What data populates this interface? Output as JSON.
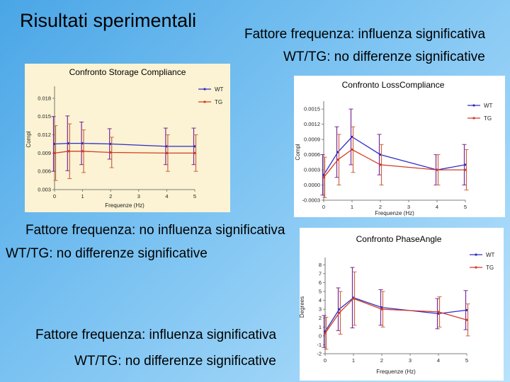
{
  "slide": {
    "title": "Risultati sperimentali",
    "text1_line1": "Fattore frequenza: influenza significativa",
    "text1_line2": "WT/TG: no differenze significative",
    "text2_line1": "Fattore frequenza: no influenza significativa",
    "text2_line2": "WT/TG: no differenze significative",
    "text3_line1": "Fattore frequenza: influenza significativa",
    "text3_line2": "WT/TG: no differenze significative"
  },
  "colors": {
    "wt": "#2d2dc8",
    "tg": "#d23c28",
    "err_wt": "#7a2a9a",
    "err_tg": "#cc6644"
  },
  "chart_data": [
    {
      "id": "chart1",
      "type": "line",
      "title": "Confronto Storage Compliance",
      "xlabel": "Frequenze (Hz)",
      "ylabel": "Compl",
      "x": [
        0,
        0.5,
        1,
        2,
        4,
        5
      ],
      "xticks": [
        0,
        1,
        2,
        3,
        4,
        5
      ],
      "yticks": [
        0.003,
        0.006,
        0.009,
        0.012,
        0.015,
        0.018
      ],
      "ytick_labels": [
        "0.003",
        "0.006",
        "0.009",
        "0.012",
        "0.015",
        "0.018"
      ],
      "xlim": [
        0,
        5
      ],
      "ylim": [
        0.003,
        0.0195
      ],
      "series": [
        {
          "name": "WT",
          "values": [
            0.0105,
            0.0106,
            0.0106,
            0.0105,
            0.0101,
            0.0101
          ],
          "err": [
            0.0045,
            0.0045,
            0.0035,
            0.0025,
            0.003,
            0.003
          ]
        },
        {
          "name": "TG",
          "values": [
            0.009,
            0.0093,
            0.0093,
            0.0091,
            0.009,
            0.009
          ],
          "err": [
            0.0045,
            0.0045,
            0.0035,
            0.0025,
            0.003,
            0.003
          ]
        }
      ]
    },
    {
      "id": "chart2",
      "type": "line",
      "title": "Confronto LossCompliance",
      "xlabel": "Frequenze (Hz)",
      "ylabel": "Compl",
      "x": [
        0,
        0.5,
        1,
        2,
        4,
        5
      ],
      "xticks": [
        0,
        1,
        2,
        3,
        4,
        5
      ],
      "yticks": [
        -0.0003,
        0.0,
        0.0003,
        0.0006,
        0.0009,
        0.0012,
        0.0015
      ],
      "ytick_labels": [
        "-0.0003",
        "0.0000",
        "0.0003",
        "0.0006",
        "0.0009",
        "0.0012",
        "0.0015"
      ],
      "xlim": [
        0,
        5
      ],
      "ylim": [
        -0.0003,
        0.0016
      ],
      "series": [
        {
          "name": "WT",
          "values": [
            0.0002,
            0.00065,
            0.00095,
            0.0006,
            0.0003,
            0.0004
          ],
          "err": [
            0.0004,
            0.0005,
            0.00055,
            0.0004,
            0.0003,
            0.0004
          ]
        },
        {
          "name": "TG",
          "values": [
            0.00015,
            0.0005,
            0.0007,
            0.0004,
            0.0003,
            0.0003
          ],
          "err": [
            0.0004,
            0.0005,
            0.00045,
            0.0004,
            0.0003,
            0.0004
          ]
        }
      ]
    },
    {
      "id": "chart3",
      "type": "line",
      "title": "Confronto PhaseAngle",
      "xlabel": "Frequenze (Hz)",
      "ylabel": "Degrees",
      "x": [
        0,
        0.5,
        1,
        2,
        4,
        5
      ],
      "xticks": [
        0,
        1,
        2,
        3,
        4,
        5
      ],
      "yticks": [
        -2,
        -1,
        0,
        1,
        2,
        3,
        4,
        5,
        6,
        7,
        8
      ],
      "ytick_labels": [
        "-2",
        "-1",
        "0",
        "1",
        "2",
        "3",
        "4",
        "5",
        "6",
        "7",
        "8"
      ],
      "xlim": [
        0,
        5
      ],
      "ylim": [
        -2,
        8.5
      ],
      "series": [
        {
          "name": "WT",
          "values": [
            0.5,
            3.0,
            4.3,
            3.2,
            2.5,
            2.9
          ],
          "err": [
            1.8,
            2.4,
            3.4,
            2.0,
            1.7,
            2.2
          ]
        },
        {
          "name": "TG",
          "values": [
            0.3,
            2.6,
            4.2,
            3.0,
            2.7,
            1.8
          ],
          "err": [
            1.8,
            2.4,
            3.0,
            2.0,
            1.7,
            1.8
          ]
        }
      ]
    }
  ]
}
